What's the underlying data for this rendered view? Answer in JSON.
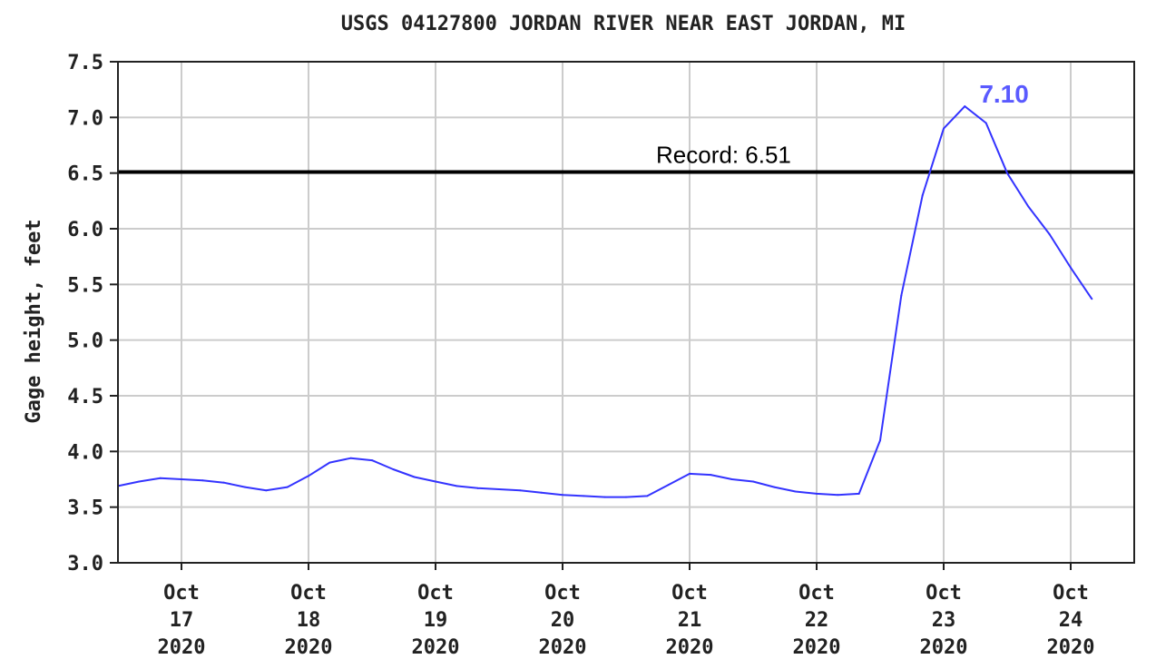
{
  "chart_data": {
    "type": "line",
    "title": "USGS 04127800 JORDAN RIVER NEAR EAST JORDAN, MI",
    "ylabel": "Gage height, feet",
    "xlabel": "",
    "ylim": [
      3.0,
      7.5
    ],
    "yticks": [
      "3.0",
      "3.5",
      "4.0",
      "4.5",
      "5.0",
      "5.5",
      "6.0",
      "6.5",
      "7.0",
      "7.5"
    ],
    "xlim": [
      "2020-10-16T12:00",
      "2020-10-24T12:00"
    ],
    "xticks": [
      {
        "month": "Oct",
        "day": "17",
        "year": "2020",
        "date": "2020-10-17"
      },
      {
        "month": "Oct",
        "day": "18",
        "year": "2020",
        "date": "2020-10-18"
      },
      {
        "month": "Oct",
        "day": "19",
        "year": "2020",
        "date": "2020-10-19"
      },
      {
        "month": "Oct",
        "day": "20",
        "year": "2020",
        "date": "2020-10-20"
      },
      {
        "month": "Oct",
        "day": "21",
        "year": "2020",
        "date": "2020-10-21"
      },
      {
        "month": "Oct",
        "day": "22",
        "year": "2020",
        "date": "2020-10-22"
      },
      {
        "month": "Oct",
        "day": "23",
        "year": "2020",
        "date": "2020-10-23"
      },
      {
        "month": "Oct",
        "day": "24",
        "year": "2020",
        "date": "2020-10-24"
      }
    ],
    "grid": true,
    "series_color": "#3333ff",
    "series": [
      {
        "x": [
          "2020-10-16T12:00",
          "2020-10-16T16:00",
          "2020-10-16T20:00",
          "2020-10-17T00:00",
          "2020-10-17T04:00",
          "2020-10-17T08:00",
          "2020-10-17T12:00",
          "2020-10-17T16:00",
          "2020-10-17T20:00",
          "2020-10-18T00:00",
          "2020-10-18T04:00",
          "2020-10-18T08:00",
          "2020-10-18T12:00",
          "2020-10-18T16:00",
          "2020-10-18T20:00",
          "2020-10-19T00:00",
          "2020-10-19T04:00",
          "2020-10-19T08:00",
          "2020-10-19T12:00",
          "2020-10-19T16:00",
          "2020-10-19T20:00",
          "2020-10-20T00:00",
          "2020-10-20T04:00",
          "2020-10-20T08:00",
          "2020-10-20T12:00",
          "2020-10-20T16:00",
          "2020-10-20T20:00",
          "2020-10-21T00:00",
          "2020-10-21T04:00",
          "2020-10-21T08:00",
          "2020-10-21T12:00",
          "2020-10-21T16:00",
          "2020-10-21T20:00",
          "2020-10-22T00:00",
          "2020-10-22T04:00",
          "2020-10-22T08:00",
          "2020-10-22T12:00",
          "2020-10-22T16:00",
          "2020-10-22T20:00",
          "2020-10-23T00:00",
          "2020-10-23T04:00",
          "2020-10-23T08:00",
          "2020-10-23T12:00",
          "2020-10-23T16:00",
          "2020-10-23T20:00",
          "2020-10-24T00:00",
          "2020-10-24T04:00"
        ],
        "values": [
          3.69,
          3.73,
          3.76,
          3.75,
          3.74,
          3.72,
          3.68,
          3.65,
          3.68,
          3.78,
          3.9,
          3.94,
          3.92,
          3.84,
          3.77,
          3.73,
          3.69,
          3.67,
          3.66,
          3.65,
          3.63,
          3.61,
          3.6,
          3.59,
          3.59,
          3.6,
          3.7,
          3.8,
          3.79,
          3.75,
          3.73,
          3.68,
          3.64,
          3.62,
          3.61,
          3.62,
          4.1,
          5.4,
          6.3,
          6.9,
          7.1,
          6.95,
          6.5,
          6.2,
          5.95,
          5.65,
          5.37
        ]
      }
    ],
    "reference_line": {
      "label": "Record: 6.51",
      "value": 6.51
    },
    "peak_annotation": {
      "label": "7.10",
      "value": 7.1,
      "x": "2020-10-23T04:00",
      "color": "#5a5aff"
    }
  }
}
